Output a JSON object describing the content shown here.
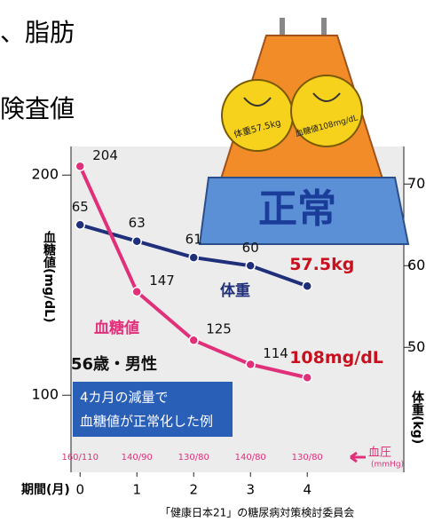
{
  "header": {
    "lines": [
      "、脂肪",
      "険査値"
    ]
  },
  "illustration": {
    "title": "正常",
    "left_badge": "体重57.5kg",
    "right_badge": "血糖値108mg/dL"
  },
  "chart_data": {
    "type": "line",
    "x": [
      0,
      1,
      2,
      3,
      4
    ],
    "xlim": [
      -0.16,
      5.7
    ],
    "xticks": [
      0,
      1,
      2,
      3,
      4
    ],
    "x_label": "期間(月)",
    "ylim": [
      65,
      213
    ],
    "yticks": [
      100,
      200
    ],
    "y_label": "血糖値(mg/dL)",
    "y2lim": [
      34.7,
      74.6
    ],
    "y2ticks": [
      50,
      60,
      70
    ],
    "y2_label": "体重(kg)",
    "series": [
      {
        "name": "体重",
        "color": "#1f2f7a",
        "axis": "y2",
        "values": [
          65,
          63,
          61,
          60,
          57.5
        ],
        "value_labels": [
          "65",
          "63",
          "61",
          "60",
          "57.5kg"
        ]
      },
      {
        "name": "血糖値",
        "color": "#e0307a",
        "values": [
          204,
          147,
          125,
          114,
          108
        ],
        "value_labels": [
          "204",
          "147",
          "125",
          "114",
          "108mg/dL"
        ]
      }
    ],
    "annotations": [
      "56歳・男性",
      "4カ月の減量で",
      "血糖値が正常化した例"
    ],
    "bp_labels": [
      "160/110",
      "140/90",
      "130/80",
      "140/80",
      "130/80"
    ],
    "bp_title": "血圧",
    "bp_unit": "(mmHg)"
  },
  "source": "「健康日本21」の糖尿病対策検討委員会"
}
